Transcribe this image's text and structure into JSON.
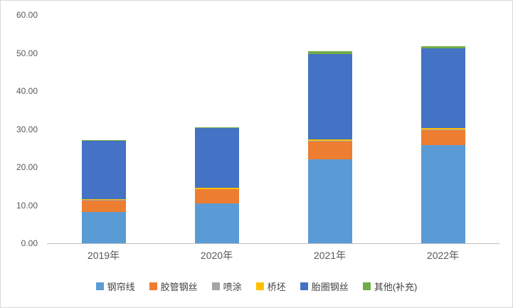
{
  "chart_data": {
    "type": "bar",
    "stacked": true,
    "title": "",
    "xlabel": "",
    "ylabel": "",
    "categories": [
      "2019年",
      "2020年",
      "2021年",
      "2022年"
    ],
    "series": [
      {
        "name": "钢帘线",
        "color": "#5B9BD5",
        "values": [
          8.3,
          10.5,
          22.0,
          25.8
        ]
      },
      {
        "name": "胶管钢丝",
        "color": "#ED7D31",
        "values": [
          3.0,
          3.7,
          4.8,
          4.0
        ]
      },
      {
        "name": "喷涂",
        "color": "#A5A5A5",
        "values": [
          0.1,
          0.1,
          0.2,
          0.2
        ]
      },
      {
        "name": "桥坯",
        "color": "#FFC000",
        "values": [
          0.2,
          0.2,
          0.3,
          0.3
        ]
      },
      {
        "name": "胎圈钢丝",
        "color": "#4472C4",
        "values": [
          15.3,
          15.7,
          22.5,
          20.9
        ]
      },
      {
        "name": "其他(补充)",
        "color": "#70AD47",
        "values": [
          0.3,
          0.3,
          0.7,
          0.6
        ]
      }
    ],
    "ylim": [
      0,
      60
    ],
    "yticks": [
      {
        "value": 0,
        "label": "0.00"
      },
      {
        "value": 10,
        "label": "10.00"
      },
      {
        "value": 20,
        "label": "20.00"
      },
      {
        "value": 30,
        "label": "30.00"
      },
      {
        "value": 40,
        "label": "40.00"
      },
      {
        "value": 50,
        "label": "50.00"
      },
      {
        "value": 60,
        "label": "60.00"
      }
    ],
    "grid": false,
    "legend_position": "bottom"
  }
}
